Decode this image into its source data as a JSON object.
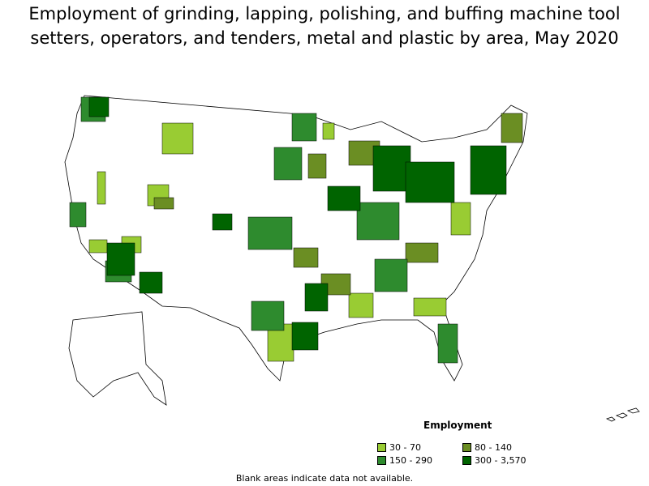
{
  "title_line1": "Employment of grinding, lapping, polishing, and buffing machine tool",
  "title_line2": "setters, operators, and tenders, metal and plastic by area, May 2020",
  "legend": {
    "title": "Employment",
    "items": [
      {
        "label": "30 - 70",
        "color": "#99cc33"
      },
      {
        "label": "80 - 140",
        "color": "#6b8e23"
      },
      {
        "label": "150 - 290",
        "color": "#2e8b2e"
      },
      {
        "label": "300 - 3,570",
        "color": "#006400"
      }
    ]
  },
  "footnote": "Blank areas indicate data not available.",
  "colors": {
    "none": "#ffffff",
    "border": "#000000"
  }
}
